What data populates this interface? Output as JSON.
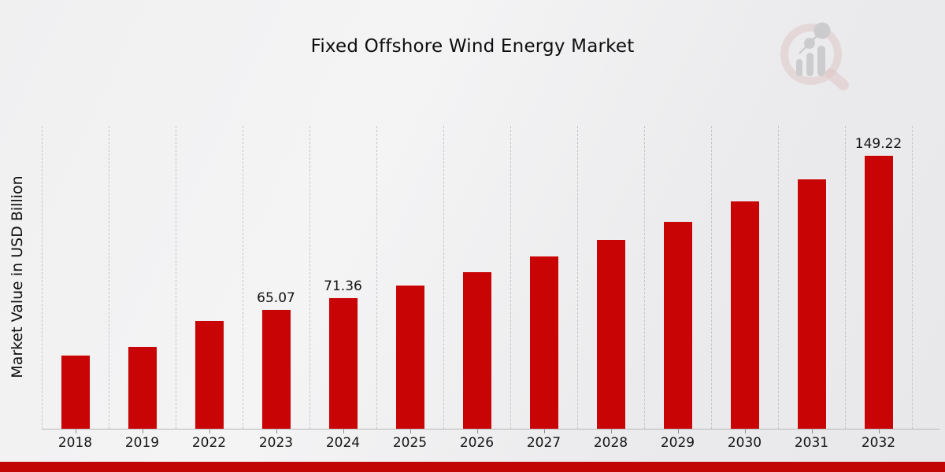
{
  "header": {
    "title": "Fixed Offshore Wind Energy Market"
  },
  "icons": {
    "watermark": "magnifier-bar-chart-logo"
  },
  "chart_data": {
    "type": "bar",
    "title": "Fixed Offshore Wind Energy Market",
    "xlabel": "",
    "ylabel": "Market Value in USD Billion",
    "categories": [
      "2018",
      "2019",
      "2022",
      "2023",
      "2024",
      "2025",
      "2026",
      "2027",
      "2028",
      "2029",
      "2030",
      "2031",
      "2032"
    ],
    "values": [
      40.1,
      45.2,
      59.3,
      65.07,
      71.36,
      78.3,
      85.8,
      94.1,
      103.2,
      113.2,
      124.1,
      136.1,
      149.22
    ],
    "data_labels": [
      "",
      "",
      "",
      "65.07",
      "71.36",
      "",
      "",
      "",
      "",
      "",
      "",
      "",
      "149.22"
    ],
    "ylim": [
      0,
      165
    ],
    "grid": "vertical-dashed",
    "legend": "none",
    "bar_color": "#c90404",
    "axis_color": "#b7b7b9",
    "label_color": "#141414"
  },
  "footer": {
    "accent_bar_color": "#c10404"
  }
}
